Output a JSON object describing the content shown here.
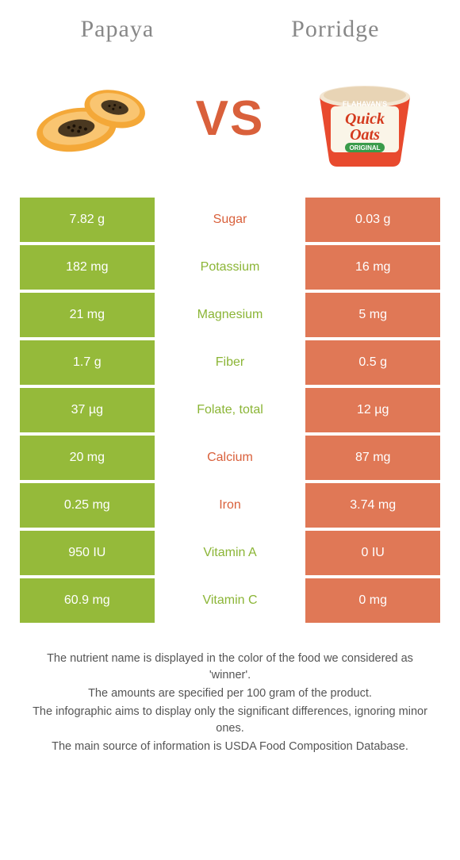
{
  "titles": {
    "left": "Papaya",
    "right": "Porridge"
  },
  "vs": "VS",
  "colors": {
    "left_bg": "#95ba3a",
    "right_bg": "#e07856",
    "winner_left": "#8bb536",
    "winner_right": "#d9603b",
    "title_text": "#888888",
    "body_text": "#555555",
    "background": "#ffffff"
  },
  "rows": [
    {
      "left": "7.82 g",
      "label": "Sugar",
      "right": "0.03 g",
      "winner": "right"
    },
    {
      "left": "182 mg",
      "label": "Potassium",
      "right": "16 mg",
      "winner": "left"
    },
    {
      "left": "21 mg",
      "label": "Magnesium",
      "right": "5 mg",
      "winner": "left"
    },
    {
      "left": "1.7 g",
      "label": "Fiber",
      "right": "0.5 g",
      "winner": "left"
    },
    {
      "left": "37 µg",
      "label": "Folate, total",
      "right": "12 µg",
      "winner": "left"
    },
    {
      "left": "20 mg",
      "label": "Calcium",
      "right": "87 mg",
      "winner": "right"
    },
    {
      "left": "0.25 mg",
      "label": "Iron",
      "right": "3.74 mg",
      "winner": "right"
    },
    {
      "left": "950 IU",
      "label": "Vitamin A",
      "right": "0 IU",
      "winner": "left"
    },
    {
      "left": "60.9 mg",
      "label": "Vitamin C",
      "right": "0 mg",
      "winner": "left"
    }
  ],
  "footnotes": [
    "The nutrient name is displayed in the color of the food we considered as 'winner'.",
    "The amounts are specified per 100 gram of the product.",
    "The infographic aims to display only the significant differences, ignoring minor ones.",
    "The main source of information is USDA Food Composition Database."
  ],
  "porridge_brand": {
    "line1": "FLAHAVAN'S",
    "line2": "Quick",
    "line3": "Oats",
    "badge": "ORIGINAL"
  }
}
